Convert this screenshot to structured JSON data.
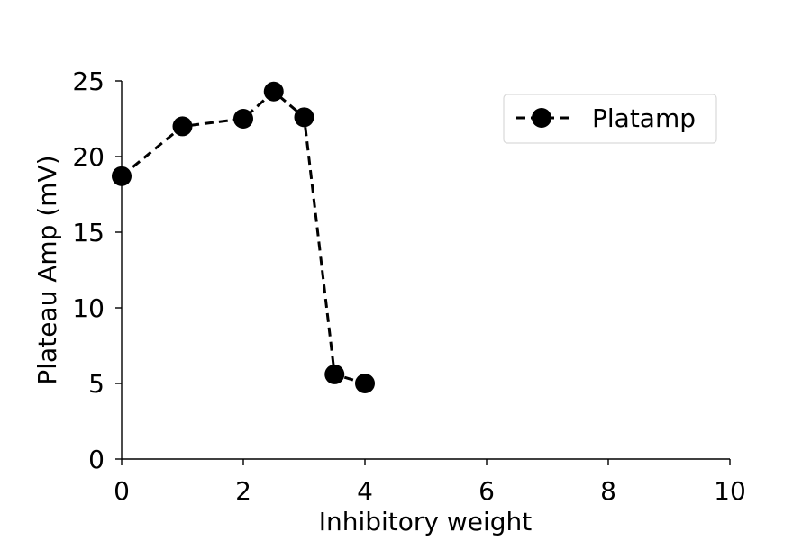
{
  "chart_data": {
    "type": "line",
    "title": "",
    "xlabel": "Inhibitory weight",
    "ylabel": "Plateau Amp (mV)",
    "xlim": [
      0,
      10
    ],
    "ylim": [
      0,
      25
    ],
    "xticks": [
      0,
      2,
      4,
      6,
      8,
      10
    ],
    "yticks": [
      0,
      5,
      10,
      15,
      20,
      25
    ],
    "grid": false,
    "legend_position": "top-right",
    "series": [
      {
        "name": "Platamp",
        "color": "#000000",
        "line_style": "dashed",
        "marker": "circle",
        "x": [
          0,
          1,
          2,
          2.5,
          3,
          3.5,
          4
        ],
        "y": [
          18.7,
          22.0,
          22.5,
          24.3,
          22.6,
          5.6,
          5.0
        ]
      }
    ]
  }
}
